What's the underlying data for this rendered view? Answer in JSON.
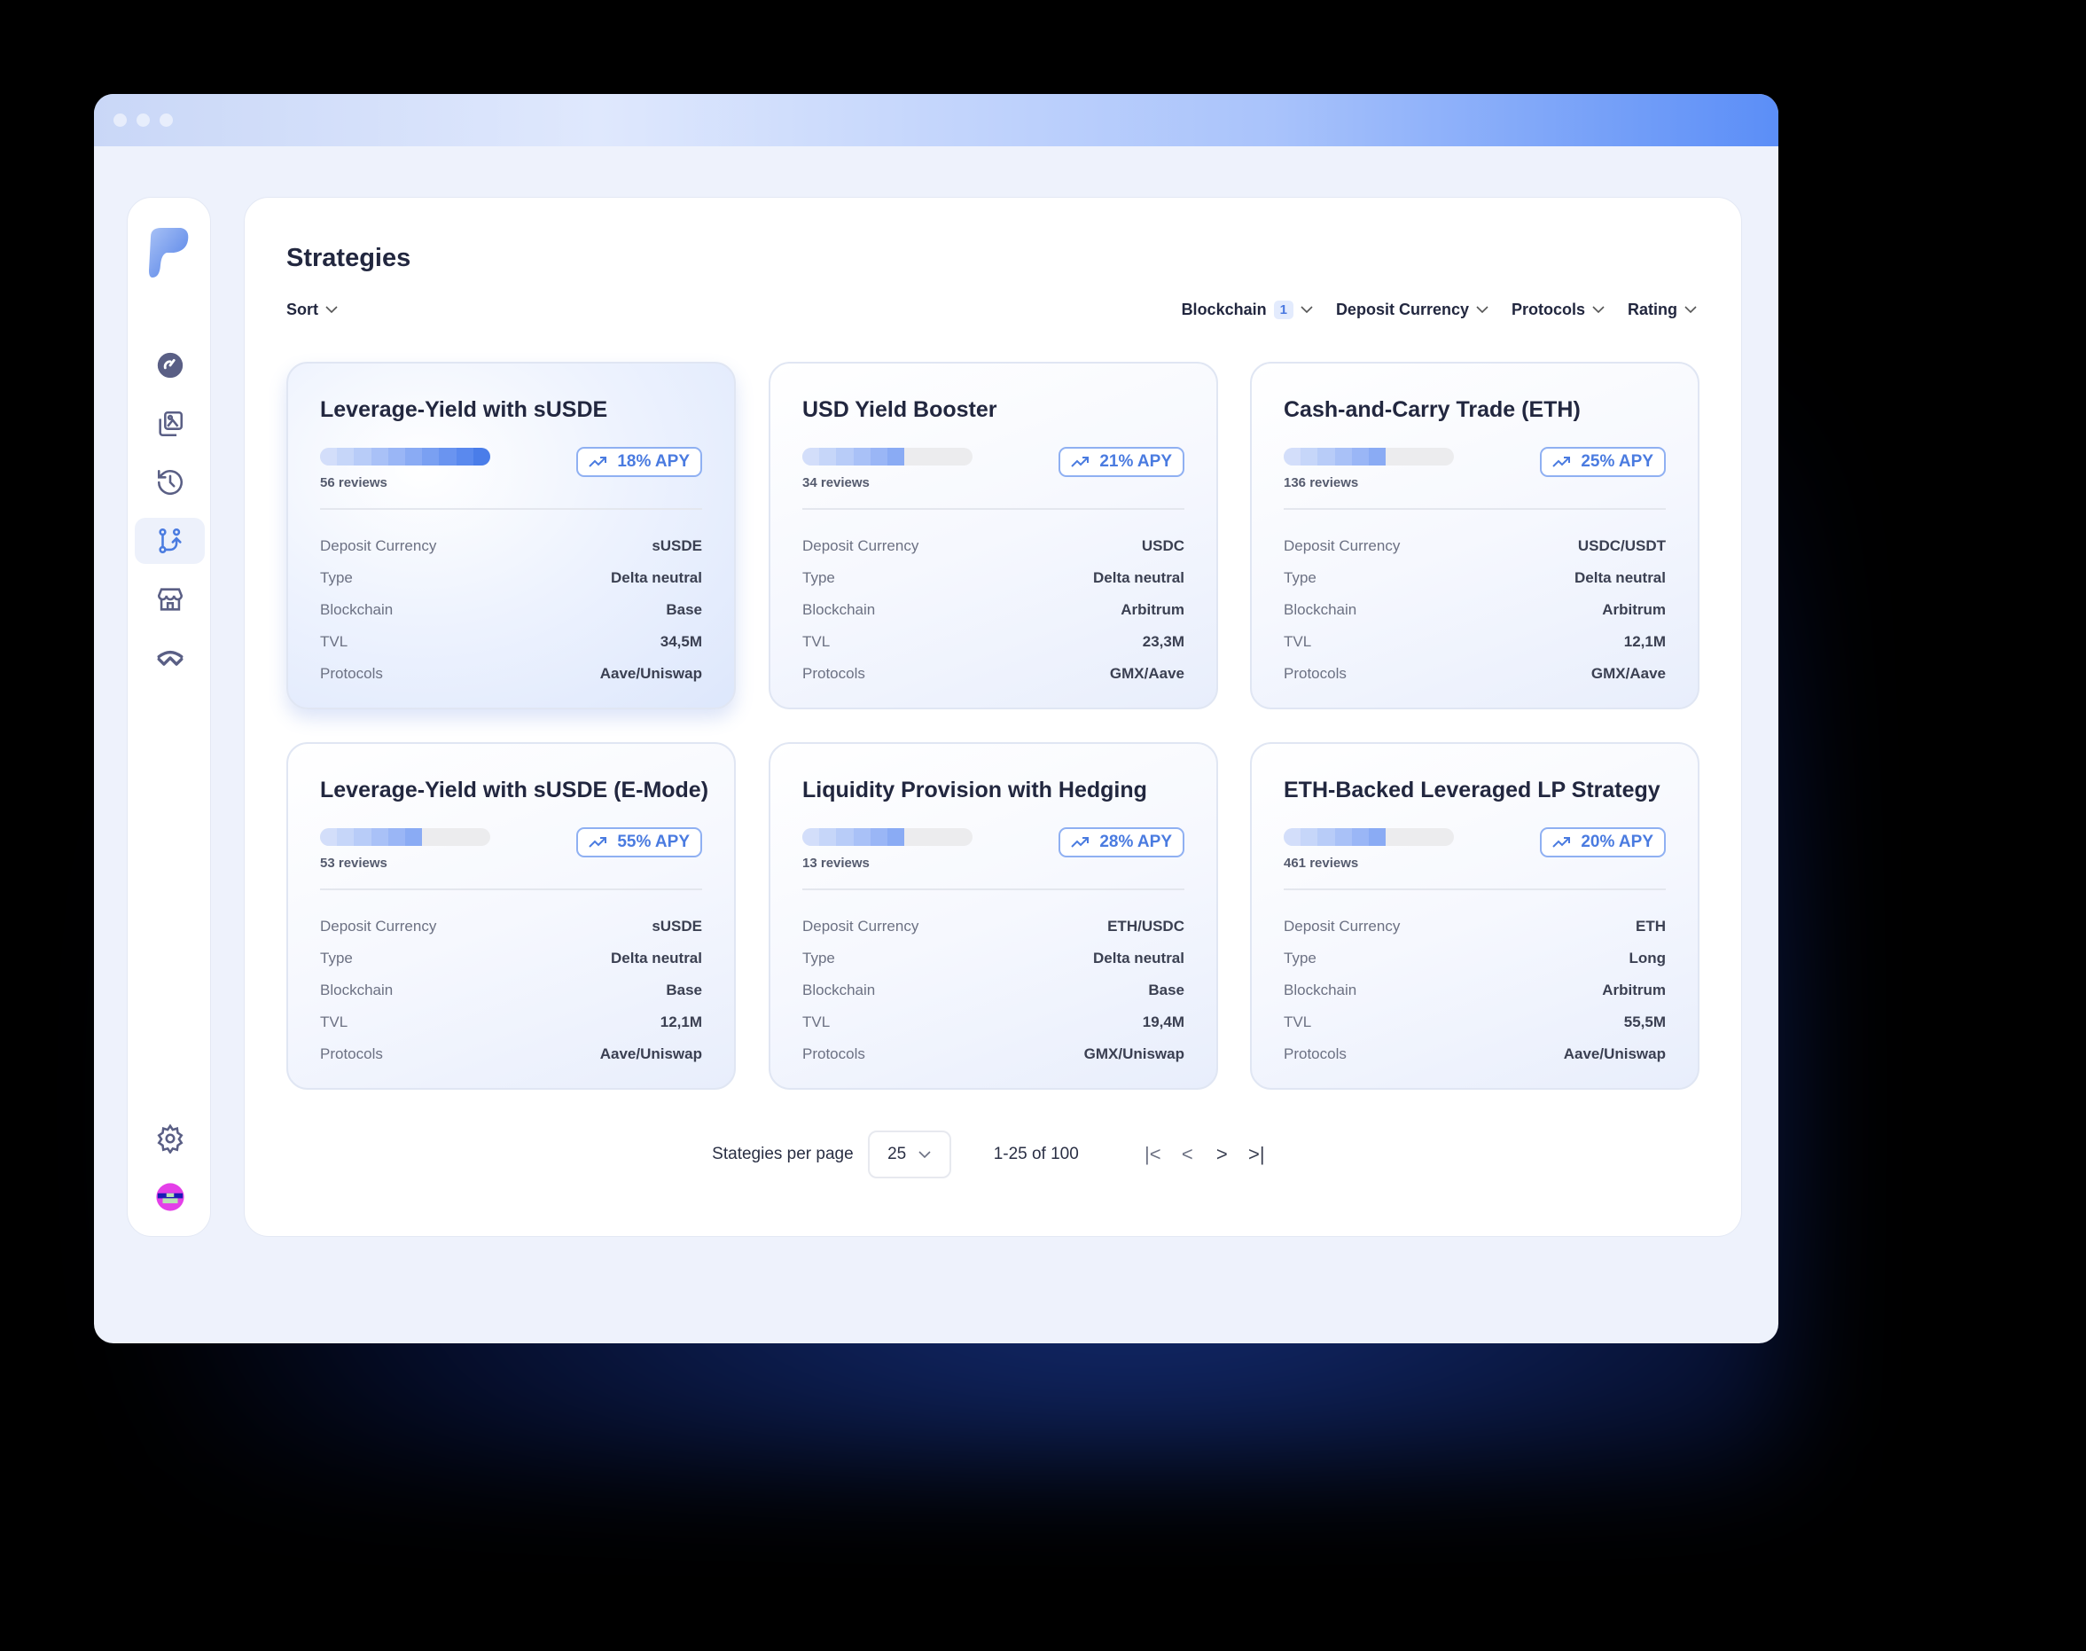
{
  "app": {
    "accent": "#4a7be0"
  },
  "sidebar": {
    "items": [
      {
        "icon": "gauge-icon",
        "label": "Dashboard"
      },
      {
        "icon": "gallery-icon",
        "label": "Gallery"
      },
      {
        "icon": "history-icon",
        "label": "History"
      },
      {
        "icon": "strategies-icon",
        "label": "Strategies",
        "active": true
      },
      {
        "icon": "store-icon",
        "label": "Store"
      },
      {
        "icon": "walletconnect-icon",
        "label": "Connect"
      }
    ]
  },
  "header": {
    "title": "Strategies",
    "sort_label": "Sort",
    "filters": [
      {
        "label": "Blockchain",
        "badge": "1"
      },
      {
        "label": "Deposit Currency"
      },
      {
        "label": "Protocols"
      },
      {
        "label": "Rating"
      }
    ]
  },
  "field_labels": {
    "deposit": "Deposit Currency",
    "type": "Type",
    "blockchain": "Blockchain",
    "tvl": "TVL",
    "protocols": "Protocols"
  },
  "cards": [
    {
      "title": "Leverage-Yield with sUSDE",
      "rating": 10,
      "reviews": "56 reviews",
      "apy": "18% APY",
      "deposit": "sUSDE",
      "type": "Delta neutral",
      "blockchain": "Base",
      "tvl": "34,5M",
      "protocols": "Aave/Uniswap"
    },
    {
      "title": "USD Yield Booster",
      "rating": 6,
      "reviews": "34 reviews",
      "apy": "21% APY",
      "deposit": "USDC",
      "type": "Delta neutral",
      "blockchain": "Arbitrum",
      "tvl": "23,3M",
      "protocols": "GMX/Aave"
    },
    {
      "title": "Cash-and-Carry Trade (ETH)",
      "rating": 6,
      "reviews": "136 reviews",
      "apy": "25% APY",
      "deposit": "USDC/USDT",
      "type": "Delta neutral",
      "blockchain": "Arbitrum",
      "tvl": "12,1M",
      "protocols": "GMX/Aave"
    },
    {
      "title": "Leverage-Yield with sUSDE (E-Mode)",
      "rating": 6,
      "reviews": "53 reviews",
      "apy": "55% APY",
      "deposit": "sUSDE",
      "type": "Delta neutral",
      "blockchain": "Base",
      "tvl": "12,1M",
      "protocols": "Aave/Uniswap"
    },
    {
      "title": "Liquidity Provision with Hedging",
      "rating": 6,
      "reviews": "13 reviews",
      "apy": "28% APY",
      "deposit": "ETH/USDC",
      "type": "Delta neutral",
      "blockchain": "Base",
      "tvl": "19,4M",
      "protocols": "GMX/Uniswap"
    },
    {
      "title": "ETH-Backed Leveraged LP Strategy",
      "rating": 6,
      "reviews": "461 reviews",
      "apy": "20% APY",
      "deposit": "ETH",
      "type": "Long",
      "blockchain": "Arbitrum",
      "tvl": "55,5M",
      "protocols": "Aave/Uniswap"
    }
  ],
  "pagination": {
    "per_page_label": "Stategies per page",
    "per_page": "25",
    "range": "1-25 of 100",
    "first": "|<",
    "prev": "<",
    "next": ">",
    "last": ">|"
  }
}
